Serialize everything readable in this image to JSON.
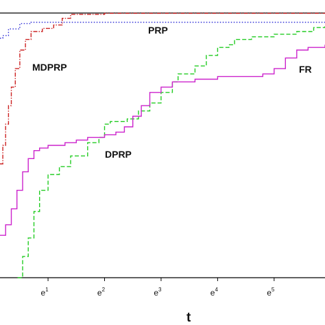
{
  "chart_data": {
    "type": "line",
    "xlabel": "t",
    "x_scale": "exp",
    "x_ticks": [
      {
        "base": "e",
        "exp": "1",
        "value": 1
      },
      {
        "base": "e",
        "exp": "2",
        "value": 2
      },
      {
        "base": "e",
        "exp": "3",
        "value": 3
      },
      {
        "base": "e",
        "exp": "4",
        "value": 4
      },
      {
        "base": "e",
        "exp": "5",
        "value": 5
      }
    ],
    "xlim": [
      0.15,
      5.9
    ],
    "ylim": [
      0,
      1
    ],
    "series": [
      {
        "name": "PRP",
        "color": "#2b2bd6",
        "style": "dotted",
        "points": [
          [
            0.15,
            0.905
          ],
          [
            0.2,
            0.915
          ],
          [
            0.3,
            0.94
          ],
          [
            0.5,
            0.96
          ],
          [
            0.7,
            0.965
          ],
          [
            5.9,
            0.965
          ]
        ]
      },
      {
        "name": "MDPRP",
        "color": "#cc2222",
        "style": "dashdot",
        "points": [
          [
            0.15,
            0.43
          ],
          [
            0.2,
            0.5
          ],
          [
            0.25,
            0.58
          ],
          [
            0.3,
            0.65
          ],
          [
            0.35,
            0.72
          ],
          [
            0.42,
            0.79
          ],
          [
            0.5,
            0.86
          ],
          [
            0.6,
            0.9
          ],
          [
            0.7,
            0.93
          ],
          [
            0.9,
            0.942
          ],
          [
            1.1,
            0.955
          ],
          [
            1.25,
            0.98
          ],
          [
            1.4,
            0.995
          ],
          [
            2.0,
            0.999
          ],
          [
            5.9,
            0.999
          ]
        ]
      },
      {
        "name": "DPRP",
        "color": "#22cc22",
        "style": "dashed",
        "points": [
          [
            0.46,
            0.0
          ],
          [
            0.55,
            0.08
          ],
          [
            0.65,
            0.15
          ],
          [
            0.75,
            0.25
          ],
          [
            0.85,
            0.33
          ],
          [
            1.0,
            0.39
          ],
          [
            1.2,
            0.42
          ],
          [
            1.4,
            0.46
          ],
          [
            1.7,
            0.51
          ],
          [
            1.9,
            0.53
          ],
          [
            2.0,
            0.58
          ],
          [
            2.1,
            0.59
          ],
          [
            2.4,
            0.6
          ],
          [
            2.6,
            0.63
          ],
          [
            2.8,
            0.66
          ],
          [
            3.0,
            0.7
          ],
          [
            3.2,
            0.74
          ],
          [
            3.3,
            0.77
          ],
          [
            3.6,
            0.8
          ],
          [
            3.8,
            0.84
          ],
          [
            4.0,
            0.87
          ],
          [
            4.2,
            0.88
          ],
          [
            4.3,
            0.9
          ],
          [
            4.6,
            0.91
          ],
          [
            5.0,
            0.92
          ],
          [
            5.4,
            0.93
          ],
          [
            5.7,
            0.945
          ],
          [
            5.9,
            0.95
          ]
        ]
      },
      {
        "name": "FR",
        "color": "#cc22cc",
        "style": "solid",
        "points": [
          [
            0.15,
            0.16
          ],
          [
            0.25,
            0.2
          ],
          [
            0.35,
            0.26
          ],
          [
            0.45,
            0.33
          ],
          [
            0.55,
            0.4
          ],
          [
            0.65,
            0.45
          ],
          [
            0.75,
            0.48
          ],
          [
            0.85,
            0.49
          ],
          [
            1.0,
            0.5
          ],
          [
            1.3,
            0.51
          ],
          [
            1.5,
            0.52
          ],
          [
            1.7,
            0.53
          ],
          [
            1.9,
            0.53
          ],
          [
            2.0,
            0.54
          ],
          [
            2.2,
            0.55
          ],
          [
            2.35,
            0.57
          ],
          [
            2.5,
            0.61
          ],
          [
            2.65,
            0.65
          ],
          [
            2.8,
            0.7
          ],
          [
            3.0,
            0.72
          ],
          [
            3.2,
            0.74
          ],
          [
            3.4,
            0.74
          ],
          [
            3.6,
            0.75
          ],
          [
            4.0,
            0.76
          ],
          [
            4.4,
            0.76
          ],
          [
            4.8,
            0.77
          ],
          [
            5.0,
            0.79
          ],
          [
            5.2,
            0.83
          ],
          [
            5.4,
            0.86
          ],
          [
            5.6,
            0.87
          ],
          [
            5.9,
            0.88
          ]
        ]
      }
    ]
  }
}
